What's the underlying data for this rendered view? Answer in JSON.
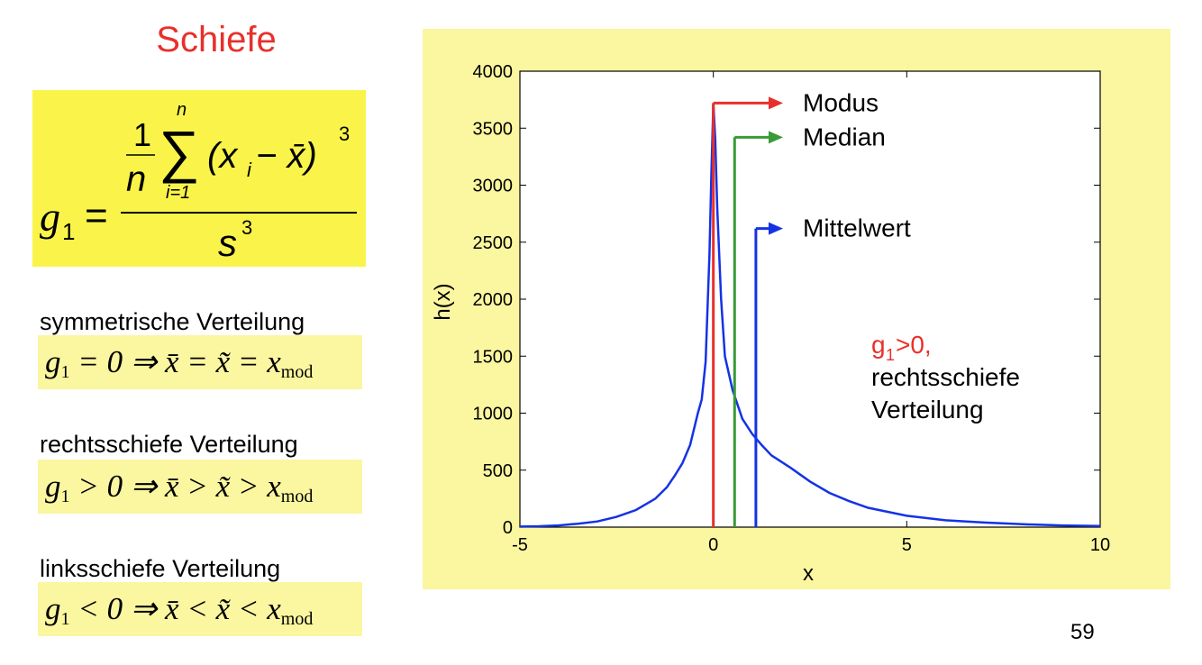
{
  "slide": {
    "title": "Schiefe",
    "page_number": "59",
    "formula": {
      "lhs": "g",
      "lhs_sub": "1",
      "numer_frac_num": "1",
      "numer_frac_den": "n",
      "sum_upper": "n",
      "sum_lower": "i=1",
      "sum_term": "(x",
      "sum_term_sub": "i",
      "sum_term_rest": " − x̄)",
      "sum_term_exp": "3",
      "denominator": "s",
      "denominator_exp": "3"
    },
    "cases": [
      {
        "label": "symmetrische Verteilung",
        "g": "g",
        "g_sub": "1",
        "relation": " = 0 ⇒ x̄ = x̃ = x",
        "mod_sub": "mod"
      },
      {
        "label": "rechtsschiefe Verteilung",
        "g": "g",
        "g_sub": "1",
        "relation": " > 0 ⇒ x̄ > x̃ > x",
        "mod_sub": "mod"
      },
      {
        "label": "linksschiefe Verteilung",
        "g": "g",
        "g_sub": "1",
        "relation": " < 0 ⇒ x̄ < x̃ < x",
        "mod_sub": "mod"
      }
    ]
  },
  "colors": {
    "title": "#e8302a",
    "curve": "#1432e6",
    "modus": "#e8302a",
    "median": "#3a9a38",
    "mittelwert": "#1432e6",
    "annotation_red": "#e8302a"
  },
  "chart_data": {
    "type": "line",
    "xlabel": "x",
    "ylabel": "h(x)",
    "xlim": [
      -5,
      10
    ],
    "ylim": [
      0,
      4000
    ],
    "xticks": [
      -5,
      0,
      5,
      10
    ],
    "yticks": [
      0,
      500,
      1000,
      1500,
      2000,
      2500,
      3000,
      3500,
      4000
    ],
    "series": [
      {
        "name": "h(x)",
        "x": [
          -5,
          -4.5,
          -4,
          -3.5,
          -3,
          -2.5,
          -2,
          -1.5,
          -1.2,
          -1,
          -0.8,
          -0.6,
          -0.4,
          -0.3,
          -0.2,
          -0.1,
          -0.05,
          0,
          0.05,
          0.1,
          0.2,
          0.3,
          0.5,
          0.75,
          1,
          1.25,
          1.5,
          2,
          2.5,
          3,
          3.5,
          4,
          5,
          6,
          7,
          8,
          9,
          10
        ],
        "y": [
          5,
          8,
          15,
          30,
          50,
          90,
          150,
          250,
          350,
          450,
          560,
          720,
          1000,
          1120,
          1450,
          2400,
          3100,
          3720,
          3400,
          2800,
          2000,
          1500,
          1200,
          950,
          820,
          720,
          630,
          520,
          400,
          300,
          230,
          170,
          100,
          60,
          40,
          25,
          15,
          10
        ]
      }
    ],
    "markers": [
      {
        "name": "Modus",
        "x": 0.0,
        "top": 3720,
        "label_y": 3720
      },
      {
        "name": "Median",
        "x": 0.55,
        "top": 3420,
        "label_y": 3420
      },
      {
        "name": "Mittelwert",
        "x": 1.1,
        "top": 2620,
        "label_y": 2620
      }
    ],
    "annotation": {
      "g": "g",
      "g_sub": "1",
      "g_rest": ">0,",
      "line2": "rechtsschiefe",
      "line3": "Verteilung"
    }
  }
}
